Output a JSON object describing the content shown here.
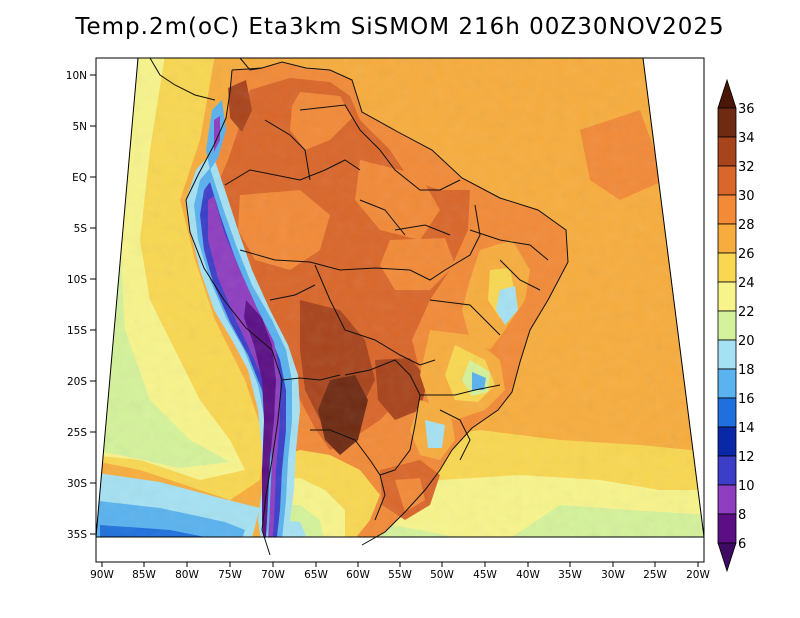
{
  "title": "Temp.2m(oC) Eta3km SiSMOM 216h 00Z30NOV2025",
  "lat_ticks": [
    "10N",
    "5N",
    "EQ",
    "5S",
    "10S",
    "15S",
    "20S",
    "25S",
    "30S",
    "35S"
  ],
  "lon_ticks": [
    "90W",
    "85W",
    "80W",
    "75W",
    "70W",
    "65W",
    "60W",
    "55W",
    "50W",
    "45W",
    "40W",
    "35W",
    "30W",
    "25W",
    "20W"
  ],
  "colorbar": {
    "labels": [
      "36",
      "34",
      "32",
      "30",
      "28",
      "26",
      "24",
      "22",
      "20",
      "18",
      "16",
      "14",
      "12",
      "10",
      "8",
      "6"
    ],
    "bins": [
      {
        "lo": 34,
        "hi": 36,
        "color": "#6e2a12"
      },
      {
        "lo": 32,
        "hi": 34,
        "color": "#a8441c"
      },
      {
        "lo": 30,
        "hi": 32,
        "color": "#d9662a"
      },
      {
        "lo": 28,
        "hi": 30,
        "color": "#f28a38"
      },
      {
        "lo": 26,
        "hi": 28,
        "color": "#f7ad3e"
      },
      {
        "lo": 24,
        "hi": 26,
        "color": "#f8d751"
      },
      {
        "lo": 22,
        "hi": 24,
        "color": "#f7f48c"
      },
      {
        "lo": 20,
        "hi": 22,
        "color": "#d4f29b"
      },
      {
        "lo": 18,
        "hi": 20,
        "color": "#a5e1f2"
      },
      {
        "lo": 16,
        "hi": 18,
        "color": "#5ab2ee"
      },
      {
        "lo": 14,
        "hi": 16,
        "color": "#1f70dc"
      },
      {
        "lo": 12,
        "hi": 14,
        "color": "#0a28a6"
      },
      {
        "lo": 10,
        "hi": 12,
        "color": "#3c3ec8"
      },
      {
        "lo": 8,
        "hi": 10,
        "color": "#8e3ec0"
      },
      {
        "lo": 6,
        "hi": 8,
        "color": "#5a0f85"
      }
    ],
    "top_arrow_color": "#4a1608",
    "bottom_arrow_color": "#3e0a63"
  }
}
